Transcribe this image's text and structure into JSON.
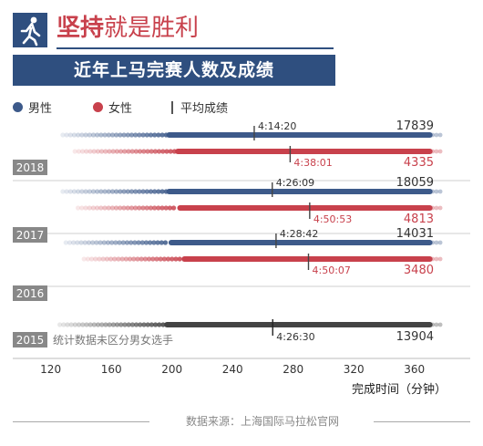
{
  "header": {
    "title_strong": "坚持",
    "title_rest": "就是胜利",
    "subtitle": "近年上马完赛人数及成绩"
  },
  "legend": {
    "male": "男性",
    "female": "女性",
    "average": "平均成绩"
  },
  "colors": {
    "male": "#3d5a8a",
    "female": "#c8414c",
    "combined": "#444444",
    "brand": "#2f4f7f"
  },
  "icons": {
    "header": "runner-icon"
  },
  "chart_data": {
    "type": "scatter",
    "xlabel": "完成时间（分钟）",
    "xlim": [
      113,
      380
    ],
    "xticks": [
      120,
      160,
      200,
      240,
      280,
      320,
      360
    ],
    "years": [
      {
        "year": "2018",
        "male": {
          "start": 128,
          "end": 372,
          "avg": 254.3,
          "avg_label": "4:14:20",
          "count": "17839"
        },
        "female": {
          "start": 136,
          "end": 372,
          "avg": 278.0,
          "avg_label": "4:38:01",
          "count": "4335"
        }
      },
      {
        "year": "2017",
        "male": {
          "start": 128,
          "end": 372,
          "avg": 266.2,
          "avg_label": "4:26:09",
          "count": "18059"
        },
        "female": {
          "start": 138,
          "end": 372,
          "avg": 290.9,
          "avg_label": "4:50:53",
          "count": "4813"
        }
      },
      {
        "year": "2016",
        "male": {
          "start": 130,
          "end": 372,
          "avg": 268.7,
          "avg_label": "4:28:42",
          "count": "14031"
        },
        "female": {
          "start": 142,
          "end": 372,
          "avg": 290.1,
          "avg_label": "4:50:07",
          "count": "3480"
        }
      },
      {
        "year": "2015",
        "combined": {
          "start": 126,
          "end": 372,
          "avg": 266.5,
          "avg_label": "4:26:30",
          "count": "13904"
        },
        "note": "统计数据未区分男女选手"
      }
    ]
  },
  "footer": {
    "source": "数据来源：上海国际马拉松官网"
  }
}
